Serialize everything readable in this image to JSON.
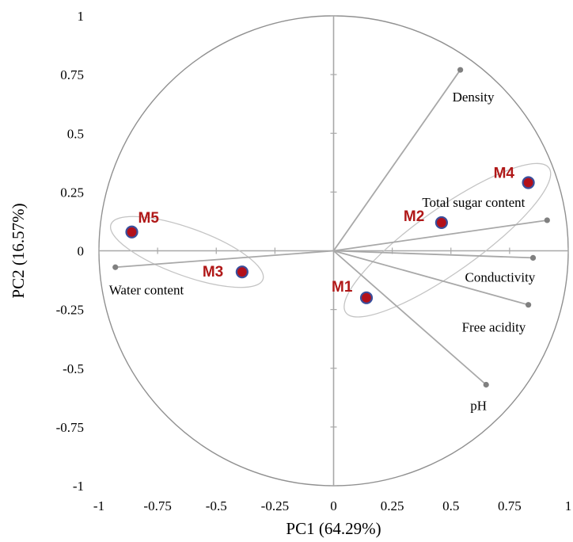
{
  "chart_data": {
    "type": "scatter",
    "subtype": "pca-biplot",
    "title": "",
    "xlabel": "PC1 (64.29%)",
    "ylabel": "PC2 (16.57%)",
    "xlim": [
      -1,
      1
    ],
    "ylim": [
      -1,
      1
    ],
    "x_ticks": [
      -1,
      -0.75,
      -0.5,
      -0.25,
      0,
      0.25,
      0.5,
      0.75,
      1
    ],
    "y_ticks": [
      -1,
      -0.75,
      -0.5,
      -0.25,
      0,
      0.25,
      0.5,
      0.75,
      1
    ],
    "x_tick_labels": [
      "-1",
      "-0.75",
      "-0.5",
      "-0.25",
      "0",
      "0.25",
      "0.5",
      "0.75",
      "1"
    ],
    "y_tick_labels": [
      "-1",
      "-0.75",
      "-0.5",
      "-0.25",
      "0",
      "0.25",
      "0.5",
      "0.75",
      "1"
    ],
    "grid": false,
    "correlation_circle": true,
    "variables": [
      {
        "name": "Density",
        "x": 0.54,
        "y": 0.77
      },
      {
        "name": "Total sugar content",
        "x": 0.91,
        "y": 0.13
      },
      {
        "name": "Conductivity",
        "x": 0.85,
        "y": -0.03
      },
      {
        "name": "Free acidity",
        "x": 0.83,
        "y": -0.23
      },
      {
        "name": "pH",
        "x": 0.65,
        "y": -0.57
      },
      {
        "name": "Water content",
        "x": -0.93,
        "y": -0.07
      }
    ],
    "samples": [
      {
        "name": "M1",
        "x": 0.14,
        "y": -0.2
      },
      {
        "name": "M2",
        "x": 0.46,
        "y": 0.12
      },
      {
        "name": "M3",
        "x": -0.39,
        "y": -0.09
      },
      {
        "name": "M4",
        "x": 0.83,
        "y": 0.29
      },
      {
        "name": "M5",
        "x": -0.86,
        "y": 0.08
      }
    ],
    "colors": {
      "axis": "#a8a8a8",
      "circle": "#909090",
      "loading_line": "#a8a8a8",
      "loading_point": "#808080",
      "sample_fill": "#b3101a",
      "sample_edge": "#3a4f9c",
      "sample_label": "#b01818",
      "group_ellipse": "#c4c4c4"
    }
  }
}
